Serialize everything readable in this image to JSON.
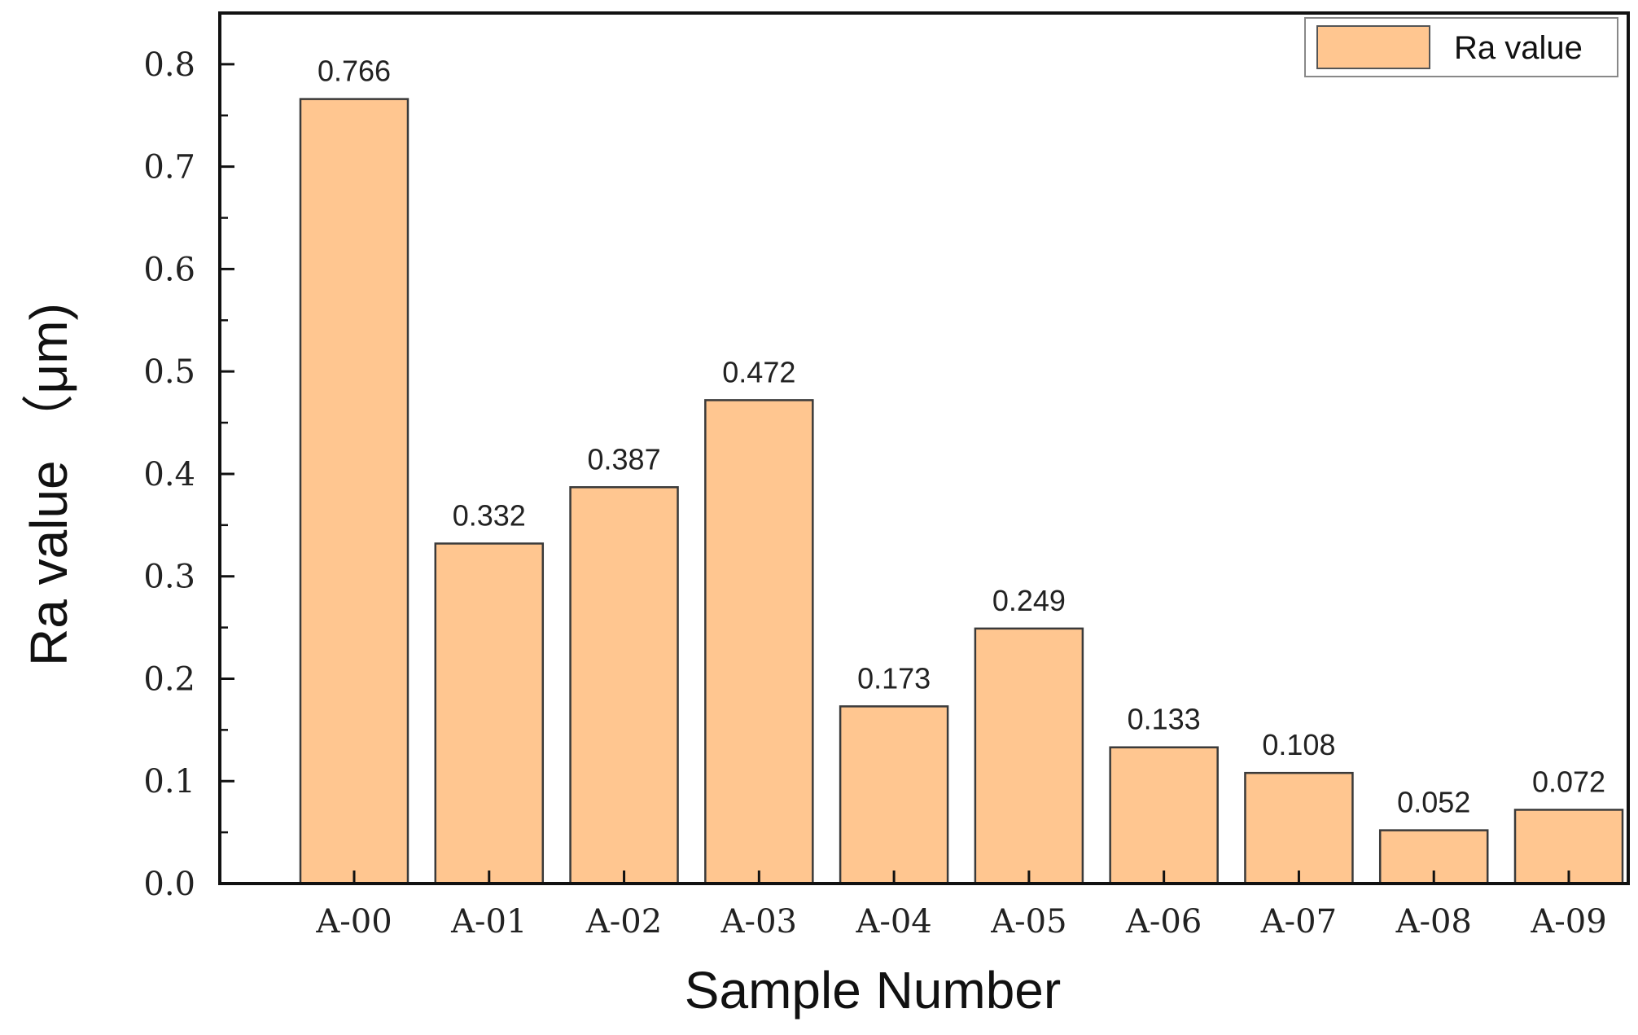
{
  "chart_data": {
    "type": "bar",
    "categories": [
      "A-00",
      "A-01",
      "A-02",
      "A-03",
      "A-04",
      "A-05",
      "A-06",
      "A-07",
      "A-08",
      "A-09"
    ],
    "series": [
      {
        "name": "Ra value",
        "values": [
          0.766,
          0.332,
          0.387,
          0.472,
          0.173,
          0.249,
          0.133,
          0.108,
          0.052,
          0.072
        ],
        "labels": [
          "0.766",
          "0.332",
          "0.387",
          "0.472",
          "0.173",
          "0.249",
          "0.133",
          "0.108",
          "0.052",
          "0.072"
        ],
        "color": "#FFC690"
      }
    ],
    "xlabel": "Sample Number",
    "ylabel": "Ra value （μm)",
    "ylim": [
      0,
      0.85
    ],
    "yticks": [
      "0.0",
      "0.1",
      "0.2",
      "0.3",
      "0.4",
      "0.5",
      "0.6",
      "0.7",
      "0.8"
    ],
    "yticks_values": [
      0,
      0.1,
      0.2,
      0.3,
      0.4,
      0.5,
      0.6,
      0.7,
      0.8
    ],
    "grid": false,
    "legend_position": "top-right"
  }
}
